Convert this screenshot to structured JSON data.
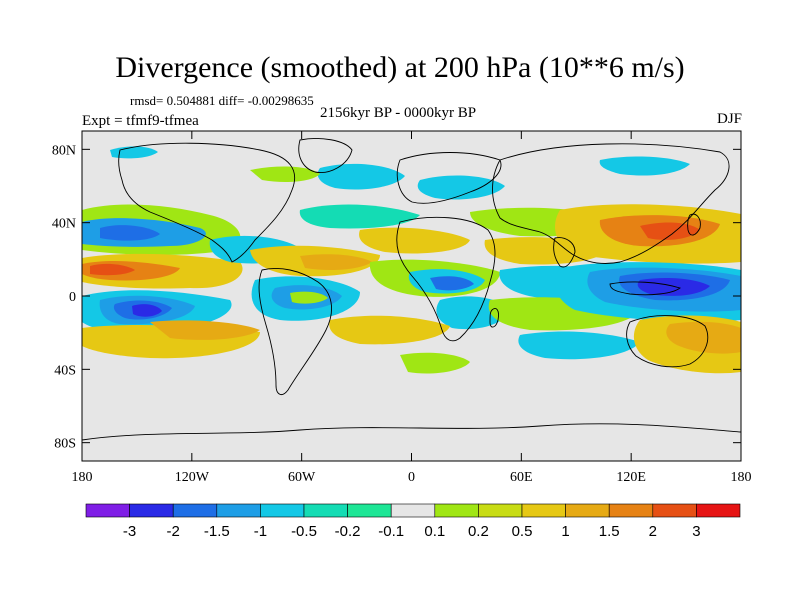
{
  "title": "Divergence (smoothed) at 200 hPa (10**6 m/s)",
  "stats": "rmsd= 0.504881 diff= -0.00298635",
  "experiment": "Expt = tfmf9-tfmea",
  "period": "2156kyr BP - 0000kyr BP",
  "season": "DJF",
  "y_axis": {
    "labels": [
      {
        "lat": 80,
        "text": "80N"
      },
      {
        "lat": 40,
        "text": "40N"
      },
      {
        "lat": 0,
        "text": "0"
      },
      {
        "lat": -40,
        "text": "40S"
      },
      {
        "lat": -80,
        "text": "80S"
      }
    ]
  },
  "x_axis": {
    "labels": [
      {
        "lon": -180,
        "text": "180"
      },
      {
        "lon": -120,
        "text": "120W"
      },
      {
        "lon": -60,
        "text": "60W"
      },
      {
        "lon": 0,
        "text": "0"
      },
      {
        "lon": 60,
        "text": "60E"
      },
      {
        "lon": 120,
        "text": "120E"
      },
      {
        "lon": 180,
        "text": "180"
      }
    ]
  },
  "colorbar": {
    "colors": [
      "#7f1ee6",
      "#2a2ae6",
      "#1e6ee6",
      "#1e9ee6",
      "#14c8e6",
      "#14dcb4",
      "#1ee696",
      "#e6e6e6",
      "#a0e614",
      "#c8dc14",
      "#e6c814",
      "#e6aa14",
      "#e68214",
      "#e65014",
      "#e61414"
    ],
    "labels": [
      "-3",
      "-2",
      "-1.5",
      "-1",
      "-0.5",
      "-0.2",
      "-0.1",
      "0.1",
      "0.2",
      "0.5",
      "1",
      "1.5",
      "2",
      "3"
    ]
  },
  "map_colors": {
    "background": "#e6e6e6",
    "strong_neg": "#2a2ae6",
    "neg": "#1e6ee6",
    "mid_neg": "#1e9ee6",
    "weak_neg": "#14c8e6",
    "weaker_neg": "#14dcb4",
    "weak_pos": "#a0e614",
    "mid_pos": "#c8dc14",
    "pos": "#e6c814",
    "strong_pos": "#e6aa14",
    "stronger_pos": "#e68214",
    "max_pos": "#e65014"
  }
}
